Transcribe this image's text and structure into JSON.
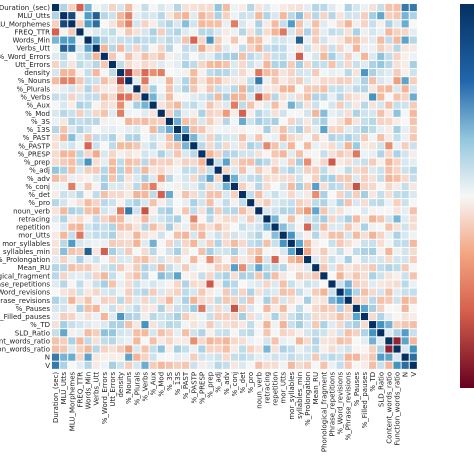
{
  "chart_data": {
    "type": "heatmap",
    "variables": [
      "Duration_(sec)",
      "MLU_Utts",
      "MLU_Morphemes",
      "FREQ_TTR",
      "Words_Min",
      "Verbs_Utt",
      "%_Word_Errors",
      "Utt_Errors",
      "density",
      "%_Nouns",
      "%_Plurals",
      "%_Verbs",
      "%_Aux",
      "%_Mod",
      "%_3S",
      "%_13S",
      "%_PAST",
      "%_PASTP",
      "%_PRESP",
      "%_prep",
      "%_adj",
      "%_adv",
      "%_conj",
      "%_det",
      "%_pro",
      "noun_verb",
      "retracing",
      "repetition",
      "mor_Utts",
      "mor_syllables",
      "syllables_min",
      "%_Prolongation",
      "Mean_RU",
      "Phonological_fragment",
      "Phrase_repetitions",
      "%_Word_revisions",
      "%_Phrase_revisions",
      "%_Pauses",
      "%_Filled_pauses",
      "%_TD",
      "SLD_Ratio",
      "Content_words_ratio",
      "Function_words_ratio",
      "N",
      "V"
    ],
    "y_tick_labels": [
      "Duration_(sec)",
      "MLU_Utts",
      "MLU_Morphemes",
      "FREQ_TTR",
      "Words_Min",
      "Verbs_Utt",
      "%_Word_Errors",
      "Utt_Errors",
      "density",
      "%_Nouns",
      "%_Plurals",
      "%_Verbs",
      "%_Aux",
      "%_Mod",
      "%_3S",
      "%_13S",
      "%_PAST",
      "%_PASTP",
      "%_PRESP",
      "%_prep",
      "%_adj",
      "%_adv",
      "%_conj",
      "%_det",
      "%_pro",
      "noun_verb",
      "retracing",
      "repetition",
      "mor_Utts",
      "mor_syllables",
      "syllables_min",
      "%_Prolongation",
      "Mean_RU",
      "ological_fragment",
      "rase_repetitions",
      "_Word_revisions",
      "Phrase_revisions",
      "%_Pauses",
      "%_Filled_pauses",
      "%_TD",
      "SLD_Ratio",
      "ent_words_ratio",
      "ction_words_ratio",
      "N",
      "V"
    ],
    "colormap": "RdBu",
    "value_range": [
      -1,
      1
    ],
    "colorbar": "right",
    "colors": {
      "high": "#08306b",
      "mid": "#f7f7f7",
      "low": "#67001f"
    }
  }
}
